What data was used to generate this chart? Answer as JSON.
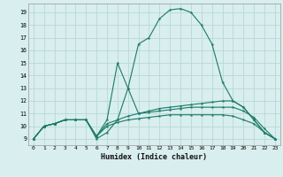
{
  "xlabel": "Humidex (Indice chaleur)",
  "bg_color": "#d9eeee",
  "grid_color": "#b8d8d8",
  "line_color": "#1a7a6a",
  "xlim": [
    -0.5,
    23.5
  ],
  "ylim": [
    8.5,
    19.7
  ],
  "xticks": [
    0,
    1,
    2,
    3,
    4,
    5,
    6,
    7,
    8,
    9,
    10,
    11,
    12,
    13,
    14,
    15,
    16,
    17,
    18,
    19,
    20,
    21,
    22,
    23
  ],
  "yticks": [
    9,
    10,
    11,
    12,
    13,
    14,
    15,
    16,
    17,
    18,
    19
  ],
  "series": [
    {
      "x": [
        0,
        1,
        2,
        3,
        4,
        5,
        6,
        7,
        8,
        9,
        10,
        11,
        12,
        13,
        14,
        15,
        16,
        17,
        18,
        19,
        20,
        21,
        22,
        23
      ],
      "y": [
        9,
        10,
        10.2,
        10.5,
        10.5,
        10.5,
        9,
        9.5,
        10.5,
        13,
        16.5,
        17,
        18.5,
        19.2,
        19.3,
        19.0,
        18.0,
        16.5,
        13.5,
        12,
        11.5,
        10.5,
        9.5,
        9
      ]
    },
    {
      "x": [
        0,
        1,
        2,
        3,
        4,
        5,
        6,
        7,
        8,
        9,
        10,
        11,
        12,
        13,
        14,
        15,
        16,
        17,
        18,
        19,
        20,
        21,
        22,
        23
      ],
      "y": [
        9,
        10,
        10.2,
        10.5,
        10.5,
        10.5,
        9.2,
        10.5,
        15,
        13,
        11,
        11.2,
        11.4,
        11.5,
        11.6,
        11.7,
        11.8,
        11.9,
        12,
        12,
        11.5,
        10.5,
        9.5,
        9
      ]
    },
    {
      "x": [
        0,
        1,
        2,
        3,
        4,
        5,
        6,
        7,
        8,
        9,
        10,
        11,
        12,
        13,
        14,
        15,
        16,
        17,
        18,
        19,
        20,
        21,
        22,
        23
      ],
      "y": [
        9,
        10,
        10.2,
        10.5,
        10.5,
        10.5,
        9.2,
        10.2,
        10.5,
        10.8,
        11,
        11.1,
        11.2,
        11.3,
        11.4,
        11.5,
        11.5,
        11.5,
        11.5,
        11.5,
        11.2,
        10.7,
        9.8,
        9
      ]
    },
    {
      "x": [
        0,
        1,
        2,
        3,
        4,
        5,
        6,
        7,
        8,
        9,
        10,
        11,
        12,
        13,
        14,
        15,
        16,
        17,
        18,
        19,
        20,
        21,
        22,
        23
      ],
      "y": [
        9,
        10,
        10.2,
        10.5,
        10.5,
        10.5,
        9.2,
        10,
        10.3,
        10.5,
        10.6,
        10.7,
        10.8,
        10.9,
        10.9,
        10.9,
        10.9,
        10.9,
        10.9,
        10.8,
        10.5,
        10.2,
        9.5,
        9
      ]
    }
  ]
}
